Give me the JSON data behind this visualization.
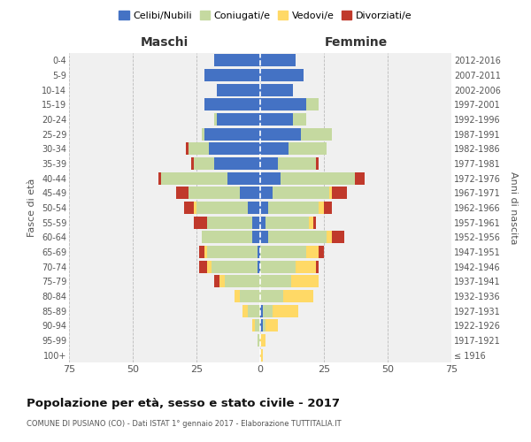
{
  "age_groups": [
    "100+",
    "95-99",
    "90-94",
    "85-89",
    "80-84",
    "75-79",
    "70-74",
    "65-69",
    "60-64",
    "55-59",
    "50-54",
    "45-49",
    "40-44",
    "35-39",
    "30-34",
    "25-29",
    "20-24",
    "15-19",
    "10-14",
    "5-9",
    "0-4"
  ],
  "birth_years": [
    "≤ 1916",
    "1917-1921",
    "1922-1926",
    "1927-1931",
    "1932-1936",
    "1937-1941",
    "1942-1946",
    "1947-1951",
    "1952-1956",
    "1957-1961",
    "1962-1966",
    "1967-1971",
    "1972-1976",
    "1977-1981",
    "1982-1986",
    "1987-1991",
    "1992-1996",
    "1997-2001",
    "2002-2006",
    "2007-2011",
    "2012-2016"
  ],
  "males": {
    "celibi": [
      0,
      0,
      0,
      0,
      0,
      0,
      1,
      1,
      3,
      3,
      5,
      8,
      13,
      18,
      20,
      22,
      17,
      22,
      17,
      22,
      18
    ],
    "coniugati": [
      0,
      1,
      2,
      5,
      8,
      14,
      18,
      20,
      20,
      18,
      20,
      20,
      26,
      8,
      8,
      1,
      1,
      0,
      0,
      0,
      0
    ],
    "vedovi": [
      0,
      0,
      1,
      2,
      2,
      2,
      2,
      1,
      0,
      0,
      1,
      0,
      0,
      0,
      0,
      0,
      0,
      0,
      0,
      0,
      0
    ],
    "divorziati": [
      0,
      0,
      0,
      0,
      0,
      2,
      3,
      2,
      0,
      5,
      4,
      5,
      1,
      1,
      1,
      0,
      0,
      0,
      0,
      0,
      0
    ]
  },
  "females": {
    "nubili": [
      0,
      0,
      1,
      1,
      0,
      0,
      0,
      0,
      3,
      2,
      3,
      5,
      8,
      7,
      11,
      16,
      13,
      18,
      13,
      17,
      14
    ],
    "coniugate": [
      0,
      0,
      1,
      4,
      9,
      12,
      14,
      18,
      23,
      17,
      20,
      22,
      29,
      15,
      15,
      12,
      5,
      5,
      0,
      0,
      0
    ],
    "vedove": [
      1,
      2,
      5,
      10,
      12,
      11,
      8,
      5,
      2,
      2,
      2,
      1,
      0,
      0,
      0,
      0,
      0,
      0,
      0,
      0,
      0
    ],
    "divorziate": [
      0,
      0,
      0,
      0,
      0,
      0,
      1,
      2,
      5,
      1,
      3,
      6,
      4,
      1,
      0,
      0,
      0,
      0,
      0,
      0,
      0
    ]
  },
  "colors": {
    "celibi": "#4472C4",
    "coniugati": "#C5D9A0",
    "vedovi": "#FFD966",
    "divorziati": "#C0392B"
  },
  "xlim": 75,
  "title": "Popolazione per età, sesso e stato civile - 2017",
  "subtitle": "COMUNE DI PUSIANO (CO) - Dati ISTAT 1° gennaio 2017 - Elaborazione TUTTITALIA.IT",
  "legend_labels": [
    "Celibi/Nubili",
    "Coniugati/e",
    "Vedovi/e",
    "Divorziati/e"
  ],
  "xlabel_left": "Maschi",
  "xlabel_right": "Femmine",
  "ylabel_left": "Fasce di età",
  "ylabel_right": "Anni di nascita",
  "background_color": "#f0f0f0",
  "grid_color": "#cccccc"
}
